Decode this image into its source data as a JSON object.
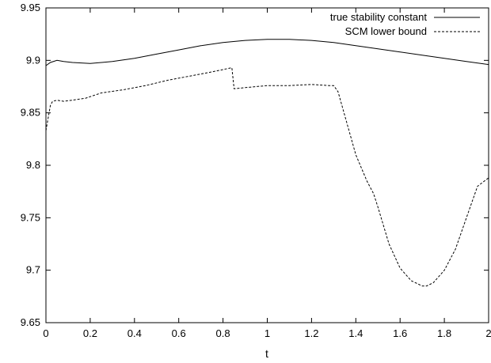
{
  "chart_data": {
    "type": "line",
    "title": "",
    "xlabel": "t",
    "ylabel": "",
    "xlim": [
      0,
      2
    ],
    "ylim": [
      9.65,
      9.95
    ],
    "grid": false,
    "legend_position": "top-right",
    "x_ticks": [
      0,
      0.2,
      0.4,
      0.6,
      0.8,
      1,
      1.2,
      1.4,
      1.6,
      1.8,
      2
    ],
    "x_tick_labels": [
      "0",
      "0.2",
      "0.4",
      "0.6",
      "0.8",
      "1",
      "1.2",
      "1.4",
      "1.6",
      "1.8",
      "2"
    ],
    "y_ticks": [
      9.65,
      9.7,
      9.75,
      9.8,
      9.85,
      9.9,
      9.95
    ],
    "y_tick_labels": [
      "9.65",
      "9.7",
      "9.75",
      "9.8",
      "9.85",
      "9.9",
      "9.95"
    ],
    "series": [
      {
        "name": "true stability constant",
        "line_style": "solid",
        "color": "#000000",
        "x": [
          0,
          0.02,
          0.05,
          0.08,
          0.12,
          0.2,
          0.3,
          0.4,
          0.5,
          0.6,
          0.7,
          0.8,
          0.9,
          1.0,
          1.05,
          1.1,
          1.2,
          1.3,
          1.4,
          1.5,
          1.6,
          1.7,
          1.8,
          1.9,
          2.0
        ],
        "y": [
          9.895,
          9.898,
          9.9,
          9.899,
          9.898,
          9.897,
          9.899,
          9.902,
          9.906,
          9.91,
          9.914,
          9.917,
          9.919,
          9.92,
          9.92,
          9.92,
          9.919,
          9.917,
          9.914,
          9.911,
          9.908,
          9.905,
          9.902,
          9.899,
          9.896
        ]
      },
      {
        "name": "SCM lower bound",
        "line_style": "dashed",
        "color": "#000000",
        "x": [
          0,
          0.01,
          0.02,
          0.03,
          0.05,
          0.08,
          0.12,
          0.18,
          0.25,
          0.35,
          0.45,
          0.55,
          0.65,
          0.75,
          0.84,
          0.85,
          0.9,
          1.0,
          1.1,
          1.2,
          1.28,
          1.3,
          1.32,
          1.4,
          1.45,
          1.48,
          1.5,
          1.55,
          1.6,
          1.65,
          1.7,
          1.72,
          1.75,
          1.8,
          1.85,
          1.9,
          1.95,
          2.0
        ],
        "y": [
          9.833,
          9.845,
          9.857,
          9.861,
          9.862,
          9.861,
          9.862,
          9.864,
          9.869,
          9.872,
          9.876,
          9.881,
          9.885,
          9.889,
          9.893,
          9.873,
          9.874,
          9.876,
          9.876,
          9.877,
          9.876,
          9.876,
          9.87,
          9.81,
          9.785,
          9.773,
          9.76,
          9.725,
          9.702,
          9.69,
          9.685,
          9.685,
          9.688,
          9.7,
          9.72,
          9.75,
          9.78,
          9.788
        ]
      }
    ]
  }
}
